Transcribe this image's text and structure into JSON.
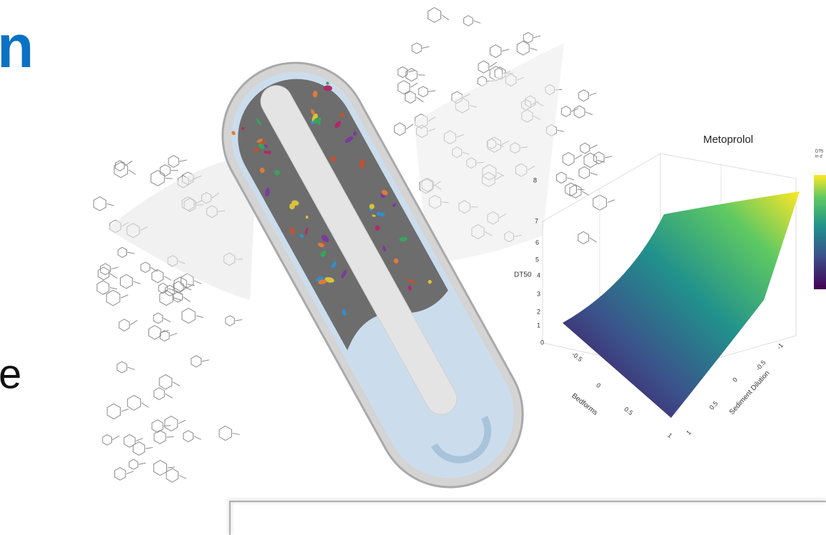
{
  "slide": {
    "heading_fragment": "n",
    "body_fragment": "e"
  },
  "figure": {
    "plot_title": "Metoprolol",
    "z_axis_label": "DT50",
    "z_ticks": [
      "0",
      "1",
      "2",
      "3",
      "4",
      "5",
      "6",
      "7",
      "8"
    ],
    "x_axis_label": "Bedforms",
    "x_ticks": [
      "-0.5",
      "0",
      "0.5",
      "1"
    ],
    "y_axis_label": "Sediment Dilution",
    "y_ticks": [
      "-1",
      "-0.5",
      "0",
      "0.5",
      "1"
    ],
    "colorbar_label": [
      "DT5",
      "in d"
    ]
  }
}
